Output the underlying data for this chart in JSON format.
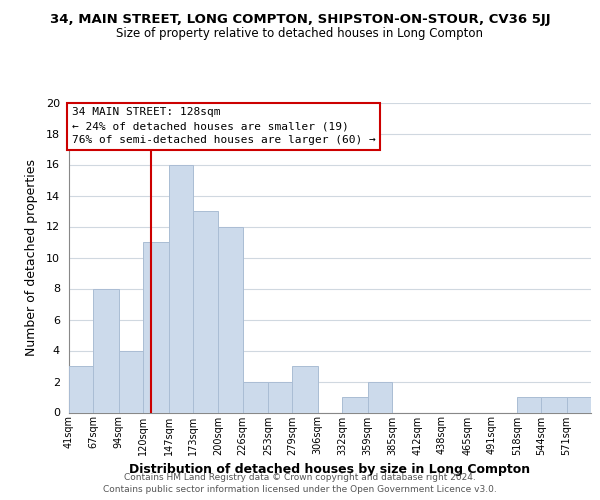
{
  "title": "34, MAIN STREET, LONG COMPTON, SHIPSTON-ON-STOUR, CV36 5JJ",
  "subtitle": "Size of property relative to detached houses in Long Compton",
  "xlabel": "Distribution of detached houses by size in Long Compton",
  "ylabel": "Number of detached properties",
  "bin_labels": [
    "41sqm",
    "67sqm",
    "94sqm",
    "120sqm",
    "147sqm",
    "173sqm",
    "200sqm",
    "226sqm",
    "253sqm",
    "279sqm",
    "306sqm",
    "332sqm",
    "359sqm",
    "385sqm",
    "412sqm",
    "438sqm",
    "465sqm",
    "491sqm",
    "518sqm",
    "544sqm",
    "571sqm"
  ],
  "bar_heights": [
    3,
    8,
    4,
    11,
    16,
    13,
    12,
    2,
    2,
    3,
    0,
    1,
    2,
    0,
    0,
    0,
    0,
    0,
    1,
    1,
    1
  ],
  "bar_color": "#ccdaeb",
  "bar_edgecolor": "#aabdd4",
  "grid_color": "#d0d8e0",
  "property_line_x": 128,
  "bin_edges_sqm": [
    41,
    67,
    94,
    120,
    147,
    173,
    200,
    226,
    253,
    279,
    306,
    332,
    359,
    385,
    412,
    438,
    465,
    491,
    518,
    544,
    571,
    597
  ],
  "annotation_title": "34 MAIN STREET: 128sqm",
  "annotation_line1": "← 24% of detached houses are smaller (19)",
  "annotation_line2": "76% of semi-detached houses are larger (60) →",
  "annotation_box_color": "#ffffff",
  "annotation_box_edgecolor": "#cc0000",
  "vline_color": "#cc0000",
  "ylim": [
    0,
    20
  ],
  "yticks": [
    0,
    2,
    4,
    6,
    8,
    10,
    12,
    14,
    16,
    18,
    20
  ],
  "footer1": "Contains HM Land Registry data © Crown copyright and database right 2024.",
  "footer2": "Contains public sector information licensed under the Open Government Licence v3.0."
}
